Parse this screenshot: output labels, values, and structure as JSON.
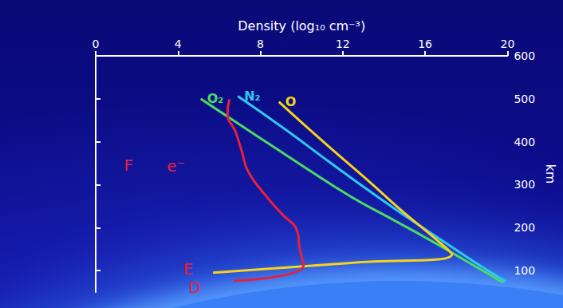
{
  "chart_data": {
    "type": "line",
    "x_label": "Density (log₁₀ cm⁻³)",
    "y_label": "km",
    "xlim": [
      0,
      20
    ],
    "xticks": [
      0,
      4,
      8,
      12,
      16,
      20
    ],
    "ylim": [
      50,
      600
    ],
    "yticks": [
      100,
      200,
      300,
      400,
      500,
      600
    ],
    "grid": false,
    "series": [
      {
        "name": "O₂",
        "color": "#4cd964",
        "x": [
          19.8,
          18.0,
          16.2,
          14.3,
          12.4,
          10.2,
          7.5,
          5.1
        ],
        "y": [
          72,
          122,
          172,
          222,
          272,
          339,
          424,
          500
        ]
      },
      {
        "name": "N₂",
        "color": "#2ec8f0",
        "x": [
          19.9,
          18.3,
          16.2,
          14.1,
          11.6,
          9.2,
          6.9
        ],
        "y": [
          75,
          123,
          190,
          258,
          344,
          429,
          506
        ]
      },
      {
        "name": "O",
        "color": "#f5d31a",
        "x": [
          5.7,
          12.4,
          17.3,
          16.3,
          14.8,
          13.2,
          11.1,
          8.9
        ],
        "y": [
          95,
          118,
          138,
          182,
          242,
          311,
          398,
          493
        ]
      },
      {
        "color": "#e8203a",
        "x": [
          6.7,
          10.1,
          9.9,
          9.8,
          9.0,
          8.2,
          7.4,
          7.1,
          6.8,
          6.4,
          6.5
        ],
        "y": [
          76,
          113,
          153,
          190,
          234,
          278,
          331,
          377,
          422,
          467,
          499
        ]
      }
    ],
    "annotations": [
      {
        "text": "F",
        "x": 1.6,
        "y": 346
      },
      {
        "text": "e⁻",
        "x": 3.9,
        "y": 343
      },
      {
        "text": "E",
        "x": 4.5,
        "y": 104
      },
      {
        "text": "D",
        "x": 4.8,
        "y": 61
      }
    ]
  }
}
